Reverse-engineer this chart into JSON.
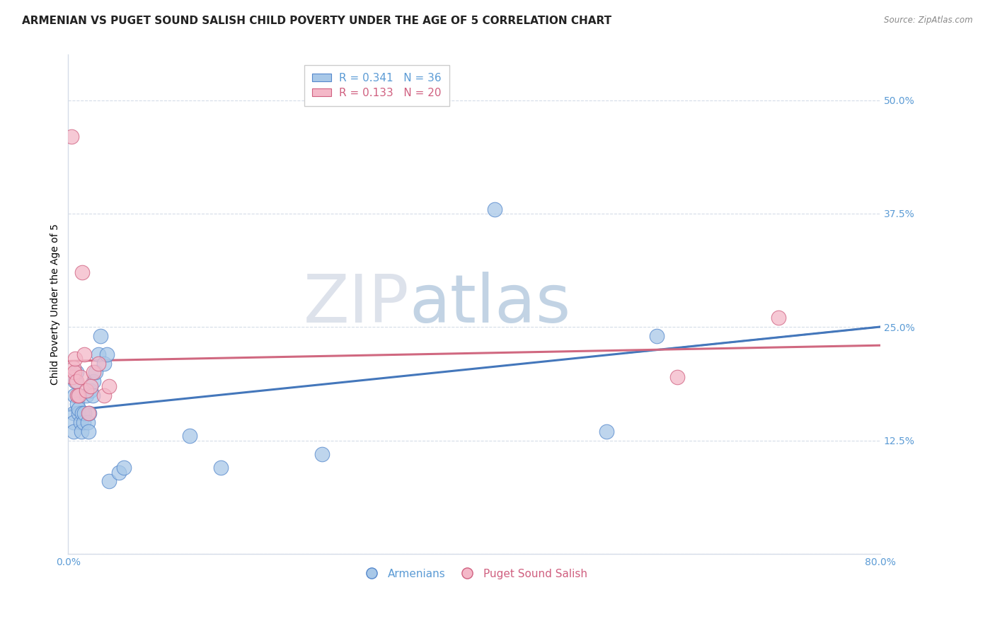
{
  "title": "ARMENIAN VS PUGET SOUND SALISH CHILD POVERTY UNDER THE AGE OF 5 CORRELATION CHART",
  "source": "Source: ZipAtlas.com",
  "ylabel": "Child Poverty Under the Age of 5",
  "xlim": [
    0.0,
    0.8
  ],
  "ylim": [
    0.0,
    0.55
  ],
  "yticks": [
    0.0,
    0.125,
    0.25,
    0.375,
    0.5
  ],
  "xticks": [
    0.0,
    0.1,
    0.2,
    0.3,
    0.4,
    0.5,
    0.6,
    0.7,
    0.8
  ],
  "armenians_x": [
    0.005,
    0.005,
    0.005,
    0.006,
    0.007,
    0.008,
    0.009,
    0.01,
    0.01,
    0.011,
    0.012,
    0.013,
    0.014,
    0.015,
    0.016,
    0.018,
    0.019,
    0.02,
    0.021,
    0.022,
    0.024,
    0.025,
    0.027,
    0.03,
    0.032,
    0.035,
    0.038,
    0.04,
    0.05,
    0.055,
    0.12,
    0.15,
    0.25,
    0.42,
    0.53,
    0.58
  ],
  "armenians_y": [
    0.155,
    0.145,
    0.135,
    0.175,
    0.19,
    0.2,
    0.165,
    0.155,
    0.16,
    0.175,
    0.145,
    0.135,
    0.155,
    0.145,
    0.155,
    0.175,
    0.145,
    0.135,
    0.155,
    0.18,
    0.175,
    0.19,
    0.2,
    0.22,
    0.24,
    0.21,
    0.22,
    0.08,
    0.09,
    0.095,
    0.13,
    0.095,
    0.11,
    0.38,
    0.135,
    0.24
  ],
  "salish_x": [
    0.003,
    0.004,
    0.005,
    0.006,
    0.007,
    0.008,
    0.009,
    0.01,
    0.012,
    0.014,
    0.016,
    0.018,
    0.02,
    0.022,
    0.025,
    0.03,
    0.035,
    0.04,
    0.6,
    0.7
  ],
  "salish_y": [
    0.46,
    0.195,
    0.205,
    0.2,
    0.215,
    0.19,
    0.175,
    0.175,
    0.195,
    0.31,
    0.22,
    0.18,
    0.155,
    0.185,
    0.2,
    0.21,
    0.175,
    0.185,
    0.195,
    0.26
  ],
  "R_armenians": 0.341,
  "N_armenians": 36,
  "R_salish": 0.133,
  "N_salish": 20,
  "color_armenians": "#a8c8e8",
  "color_salish": "#f4b8c8",
  "edge_armenians": "#5588cc",
  "edge_salish": "#d06080",
  "line_color_armenians": "#4477bb",
  "line_color_salish": "#d06880",
  "axis_color": "#5b9bd5",
  "grid_color": "#d5dce8",
  "background_color": "#ffffff",
  "title_fontsize": 11,
  "label_fontsize": 10,
  "tick_fontsize": 10,
  "legend_fontsize": 11
}
